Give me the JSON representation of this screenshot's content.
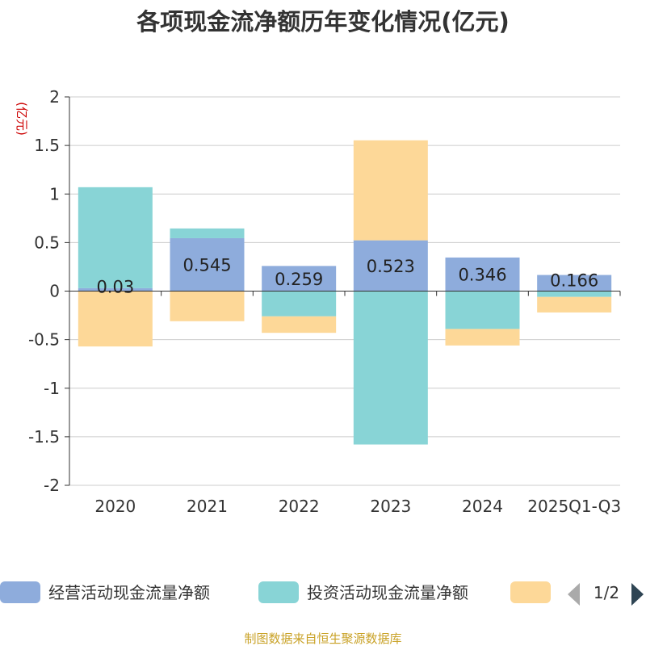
{
  "chart_data": {
    "type": "bar",
    "stacked": true,
    "title": "各项现金流净额历年变化情况(亿元)",
    "unit_label": "(亿元)",
    "categories": [
      "2020",
      "2021",
      "2022",
      "2023",
      "2024",
      "2025Q1-Q3"
    ],
    "ylim": [
      -2,
      2
    ],
    "yticks": [
      2,
      1.5,
      1,
      0.5,
      0,
      -0.5,
      -1,
      -1.5,
      -2
    ],
    "ytick_labels": [
      "2",
      "1.5",
      "1",
      "0.5",
      "0",
      "-0.5",
      "-1",
      "-1.5",
      "-2"
    ],
    "grid": true,
    "series": [
      {
        "name": "经营活动现金流量净额",
        "color": "#8eacdc",
        "values": [
          0.03,
          0.545,
          0.259,
          0.523,
          0.346,
          0.166
        ],
        "labels": [
          "0.03",
          "0.545",
          "0.259",
          "0.523",
          "0.346",
          "0.166"
        ]
      },
      {
        "name": "投资活动现金流量净额",
        "color": "#88d4d6",
        "values": [
          1.04,
          0.1,
          -0.26,
          -1.58,
          -0.39,
          -0.06
        ]
      },
      {
        "name": "",
        "color": "#fdd898",
        "values": [
          -0.57,
          -0.31,
          -0.17,
          1.03,
          -0.17,
          -0.16
        ]
      }
    ]
  },
  "legend": {
    "page_indicator": "1/2"
  },
  "source_text": "制图数据来自恒生聚源数据库"
}
